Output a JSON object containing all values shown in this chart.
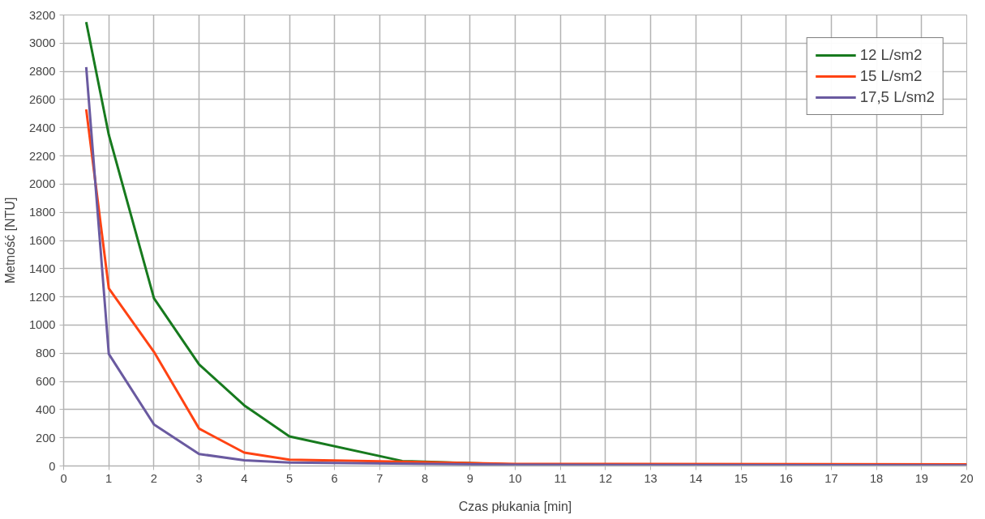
{
  "chart_data": {
    "type": "line",
    "xlabel": "Czas płukania [min]",
    "ylabel": "Metność [NTU]",
    "xlim": [
      0,
      20
    ],
    "xticks": [
      0,
      1,
      2,
      3,
      4,
      5,
      6,
      7,
      8,
      9,
      10,
      11,
      12,
      13,
      14,
      15,
      16,
      17,
      18,
      19,
      20
    ],
    "ylim": [
      0,
      3200
    ],
    "yticks": [
      0,
      200,
      400,
      600,
      800,
      1000,
      1200,
      1400,
      1600,
      1800,
      2000,
      2200,
      2400,
      2600,
      2800,
      3000,
      3200
    ],
    "grid": true,
    "legend": "top right",
    "marker": "none",
    "line_style": "solid",
    "series": [
      {
        "name": "12 L/sm2",
        "color": "#177a1e",
        "x": [
          0.5,
          1,
          2,
          3,
          4,
          5,
          7.5,
          10
        ],
        "values": [
          3150,
          2350,
          1190,
          720,
          430,
          210,
          35,
          10
        ]
      },
      {
        "name": "15 L/sm2",
        "color": "#ff4313",
        "x": [
          0.5,
          1,
          2,
          3,
          4,
          5,
          10,
          20
        ],
        "values": [
          2530,
          1260,
          810,
          265,
          95,
          45,
          15,
          12
        ]
      },
      {
        "name": "17,5 L/sm2",
        "color": "#6a5aa0",
        "x": [
          0.5,
          1,
          2,
          3,
          4,
          5,
          10,
          20
        ],
        "values": [
          2830,
          795,
          295,
          85,
          40,
          25,
          8,
          5
        ]
      }
    ]
  }
}
